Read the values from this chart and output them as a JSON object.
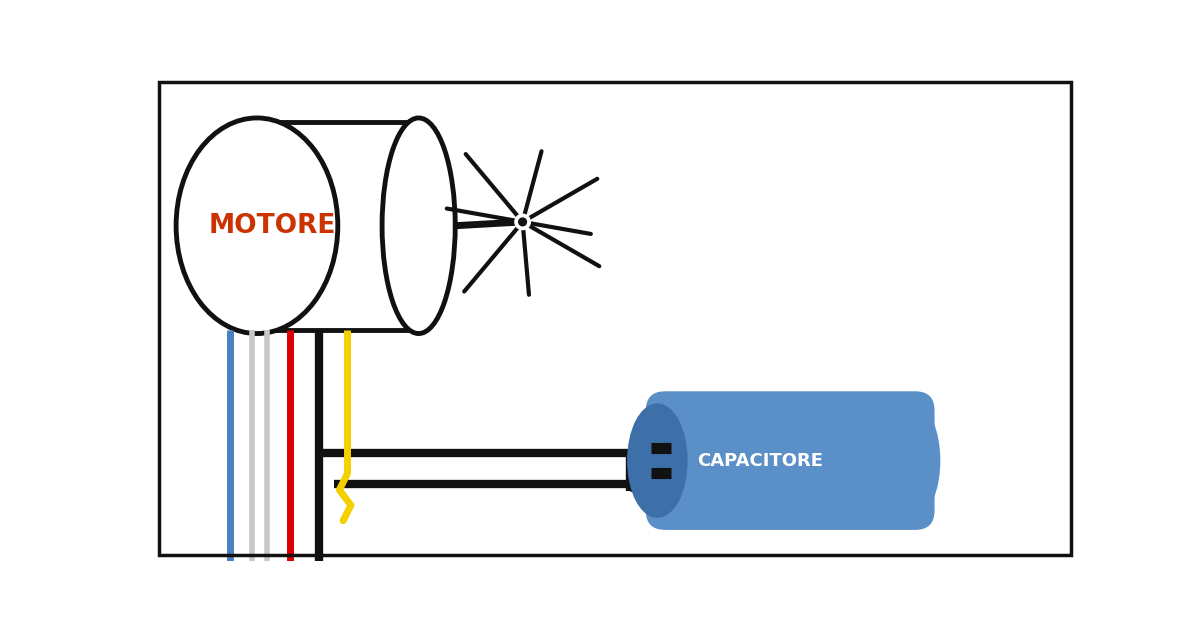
{
  "bg": "#ffffff",
  "border": "#111111",
  "motor_label": "MOTORE",
  "motor_label_color": "#cc3300",
  "cap_label": "CAPACITORE",
  "cap_label_color": "#ffffff",
  "cap_body_color": "#5a8fc8",
  "cap_end_color": "#3d6fa8",
  "wire_blue": "#4a80c4",
  "wire_gray": "#c8c8c8",
  "wire_red": "#dd0000",
  "wire_black": "#111111",
  "wire_yellow": "#f5d000",
  "lw_wire": 5,
  "lw_border": 3.5,
  "lw_cap_wire": 6
}
